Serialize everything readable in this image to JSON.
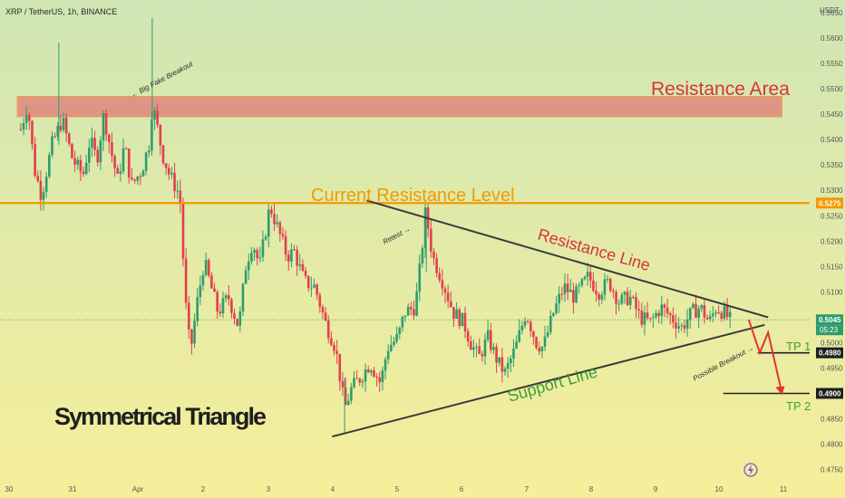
{
  "header": {
    "symbol_line": "XRP / TetherUS, 1h, BINANCE"
  },
  "currency": "USDT",
  "colors": {
    "bg_top": "#cfe6b4",
    "bg_bottom": "#f6ef9a",
    "up": "#2e9c6e",
    "down": "#e23f4d",
    "resistance_level": "#f29a00",
    "resistance_area": "#e0807a",
    "trendline": "#3a3a3a",
    "arrow": "#e23232",
    "support_text": "#3f9e3a",
    "resistance_text": "#d8323c"
  },
  "chart_data": {
    "type": "candlestick",
    "title": "XRP / TetherUS, 1h, BINANCE",
    "x_ticks": [
      "30",
      "31",
      "Apr",
      "2",
      "3",
      "4",
      "5",
      "6",
      "7",
      "8",
      "9",
      "10",
      "11"
    ],
    "y_ticks": [
      "0.5650",
      "0.5600",
      "0.5550",
      "0.5500",
      "0.5450",
      "0.5400",
      "0.5350",
      "0.5300",
      "0.5250",
      "0.5200",
      "0.5150",
      "0.5100",
      "0.5000",
      "0.4950",
      "0.4850",
      "0.4800",
      "0.4750"
    ],
    "ylim": [
      0.4735,
      0.5675
    ],
    "xlim": [
      -0.3,
      11.4
    ],
    "price_path": [
      [
        0.0,
        0.542
      ],
      [
        0.1,
        0.547
      ],
      [
        0.2,
        0.534
      ],
      [
        0.3,
        0.529
      ],
      [
        0.45,
        0.539
      ],
      [
        0.6,
        0.544
      ],
      [
        0.75,
        0.536
      ],
      [
        0.9,
        0.533
      ],
      [
        1.0,
        0.54
      ],
      [
        1.1,
        0.536
      ],
      [
        1.2,
        0.545
      ],
      [
        1.3,
        0.538
      ],
      [
        1.4,
        0.532
      ],
      [
        1.5,
        0.539
      ],
      [
        1.6,
        0.531
      ],
      [
        1.75,
        0.534
      ],
      [
        1.87,
        0.54
      ],
      [
        1.9,
        0.547
      ],
      [
        1.95,
        0.544
      ],
      [
        2.05,
        0.537
      ],
      [
        2.15,
        0.533
      ],
      [
        2.3,
        0.529
      ],
      [
        2.38,
        0.508
      ],
      [
        2.45,
        0.498
      ],
      [
        2.55,
        0.508
      ],
      [
        2.65,
        0.516
      ],
      [
        2.75,
        0.511
      ],
      [
        2.85,
        0.506
      ],
      [
        3.0,
        0.509
      ],
      [
        3.15,
        0.503
      ],
      [
        3.25,
        0.515
      ],
      [
        3.35,
        0.52
      ],
      [
        3.45,
        0.515
      ],
      [
        3.6,
        0.527
      ],
      [
        3.7,
        0.523
      ],
      [
        3.85,
        0.517
      ],
      [
        3.95,
        0.518
      ],
      [
        4.1,
        0.512
      ],
      [
        4.25,
        0.511
      ],
      [
        4.4,
        0.504
      ],
      [
        4.55,
        0.499
      ],
      [
        4.68,
        0.487
      ],
      [
        4.78,
        0.491
      ],
      [
        4.9,
        0.493
      ],
      [
        5.05,
        0.496
      ],
      [
        5.2,
        0.492
      ],
      [
        5.3,
        0.499
      ],
      [
        5.45,
        0.501
      ],
      [
        5.55,
        0.506
      ],
      [
        5.7,
        0.507
      ],
      [
        5.78,
        0.516
      ],
      [
        5.85,
        0.526
      ],
      [
        5.95,
        0.517
      ],
      [
        6.1,
        0.512
      ],
      [
        6.25,
        0.506
      ],
      [
        6.4,
        0.504
      ],
      [
        6.5,
        0.5
      ],
      [
        6.62,
        0.497
      ],
      [
        6.75,
        0.501
      ],
      [
        6.9,
        0.496
      ],
      [
        7.0,
        0.494
      ],
      [
        7.15,
        0.499
      ],
      [
        7.3,
        0.506
      ],
      [
        7.45,
        0.5
      ],
      [
        7.55,
        0.499
      ],
      [
        7.7,
        0.506
      ],
      [
        7.85,
        0.511
      ],
      [
        8.0,
        0.509
      ],
      [
        8.2,
        0.513
      ],
      [
        8.35,
        0.51
      ],
      [
        8.5,
        0.512
      ],
      [
        8.65,
        0.508
      ],
      [
        8.8,
        0.509
      ],
      [
        8.95,
        0.505
      ],
      [
        9.1,
        0.504
      ],
      [
        9.25,
        0.507
      ],
      [
        9.4,
        0.505
      ],
      [
        9.55,
        0.503
      ],
      [
        9.7,
        0.506
      ],
      [
        9.82,
        0.507
      ],
      [
        9.95,
        0.504
      ],
      [
        10.05,
        0.507
      ],
      [
        10.15,
        0.506
      ],
      [
        10.25,
        0.5045
      ]
    ],
    "current_price": "0.5045",
    "countdown": "05:23",
    "levels": [
      {
        "label": "0.5275",
        "value": 0.5275,
        "kind": "current-resistance"
      },
      {
        "label": "0.4980",
        "value": 0.498,
        "kind": "tp1"
      },
      {
        "label": "0.4900",
        "value": 0.49,
        "kind": "tp2"
      }
    ],
    "resistance_area": {
      "from": 0.5445,
      "to": 0.5485,
      "x_from": -0.05,
      "x_to": 11.0
    },
    "resistance_line": {
      "x1": 5.0,
      "y1": 0.528,
      "x2": 10.8,
      "y2": 0.505
    },
    "support_line": {
      "x1": 4.5,
      "y1": 0.4815,
      "x2": 10.75,
      "y2": 0.5035
    },
    "breakdown_path": [
      [
        10.52,
        0.5045
      ],
      [
        10.68,
        0.498
      ],
      [
        10.8,
        0.502
      ],
      [
        11.0,
        0.49
      ]
    ]
  },
  "annotations": {
    "resistance_area": "Resistance Area",
    "current_resistance_level": "Current Resistance Level",
    "resistance_line": "Resistance Line",
    "support_line": "Support Line",
    "symmetrical_triangle": "Symmetrical Triangle",
    "big_fake_breakout": "← Big Fake Breakout",
    "retest": "Retest →",
    "possible_breakout": "Possible Breakout →",
    "tp1": "TP 1",
    "tp2": "TP 2"
  }
}
